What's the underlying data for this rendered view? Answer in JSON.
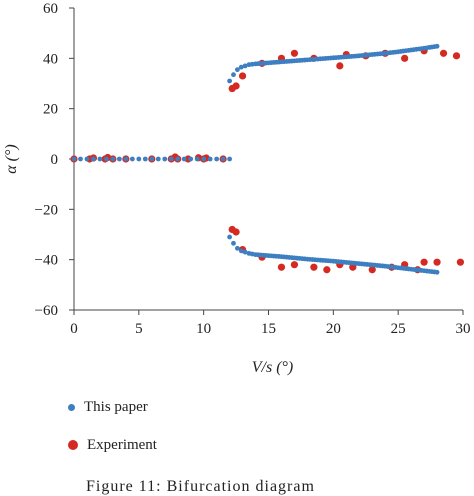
{
  "chart_data": {
    "type": "scatter",
    "xlabel": "V/s (°)",
    "ylabel": "α (°)",
    "xlim": [
      0,
      30
    ],
    "ylim": [
      -60,
      60
    ],
    "xticks": [
      0,
      5,
      10,
      15,
      20,
      25,
      30
    ],
    "yticks": [
      -60,
      -40,
      -20,
      0,
      20,
      40,
      60
    ],
    "grid": false,
    "legend_position": "bottom",
    "series": [
      {
        "name": "This paper",
        "color": "#3d7fc0",
        "marker": "asterisk",
        "stable": {
          "x_start": 0,
          "x_end": 12.0,
          "step": 0.5,
          "y": 0
        },
        "upper_branch": [
          [
            12.0,
            31
          ],
          [
            12.3,
            33.5
          ],
          [
            12.6,
            35.5
          ],
          [
            12.9,
            36.5
          ],
          [
            13.2,
            37
          ],
          [
            13.5,
            37.5
          ],
          [
            14,
            37.8
          ],
          [
            15,
            38.2
          ],
          [
            16,
            38.6
          ],
          [
            17,
            39
          ],
          [
            18,
            39.4
          ],
          [
            19,
            39.8
          ],
          [
            20,
            40.2
          ],
          [
            21,
            40.6
          ],
          [
            22,
            41
          ],
          [
            23,
            41.5
          ],
          [
            24,
            42
          ],
          [
            25,
            42.6
          ],
          [
            26,
            43.3
          ],
          [
            27,
            44
          ],
          [
            28,
            44.8
          ]
        ],
        "lower_branch": [
          [
            12.0,
            -31
          ],
          [
            12.3,
            -33.5
          ],
          [
            12.6,
            -35.5
          ],
          [
            12.9,
            -36.5
          ],
          [
            13.2,
            -37
          ],
          [
            13.5,
            -37.5
          ],
          [
            14,
            -38
          ],
          [
            15,
            -38.4
          ],
          [
            16,
            -38.8
          ],
          [
            17,
            -39.3
          ],
          [
            18,
            -39.8
          ],
          [
            19,
            -40.2
          ],
          [
            20,
            -40.6
          ],
          [
            21,
            -41.1
          ],
          [
            22,
            -41.6
          ],
          [
            23,
            -42.1
          ],
          [
            24,
            -42.6
          ],
          [
            25,
            -43.2
          ],
          [
            26,
            -43.8
          ],
          [
            27,
            -44.4
          ],
          [
            28,
            -45
          ]
        ]
      },
      {
        "name": "Experiment",
        "color": "#d42a22",
        "marker": "circle",
        "points": [
          [
            0,
            0
          ],
          [
            1.2,
            0
          ],
          [
            1.5,
            0.4
          ],
          [
            2.4,
            0
          ],
          [
            2.6,
            0.6
          ],
          [
            3.0,
            0
          ],
          [
            4.0,
            0
          ],
          [
            6.0,
            0
          ],
          [
            7.5,
            0
          ],
          [
            7.8,
            0.8
          ],
          [
            8.0,
            0
          ],
          [
            8.8,
            0
          ],
          [
            9.6,
            0.5
          ],
          [
            10.0,
            0
          ],
          [
            10.2,
            0.4
          ],
          [
            11.5,
            0
          ],
          [
            12.2,
            28
          ],
          [
            12.5,
            29
          ],
          [
            13.0,
            33
          ],
          [
            14.5,
            38
          ],
          [
            16.0,
            40
          ],
          [
            17.0,
            42
          ],
          [
            18.5,
            40
          ],
          [
            20.5,
            37
          ],
          [
            21.0,
            41.5
          ],
          [
            22.5,
            41
          ],
          [
            24.0,
            42
          ],
          [
            25.5,
            40
          ],
          [
            27.0,
            43
          ],
          [
            28.5,
            42
          ],
          [
            29.5,
            41
          ],
          [
            12.2,
            -28
          ],
          [
            12.5,
            -29
          ],
          [
            13.0,
            -36
          ],
          [
            14.5,
            -39
          ],
          [
            16.0,
            -43
          ],
          [
            17.0,
            -42
          ],
          [
            18.5,
            -43
          ],
          [
            19.5,
            -44
          ],
          [
            20.5,
            -42
          ],
          [
            21.5,
            -43
          ],
          [
            23.0,
            -44
          ],
          [
            24.5,
            -43
          ],
          [
            25.5,
            -42
          ],
          [
            26.5,
            -44
          ],
          [
            27.0,
            -41
          ],
          [
            28.0,
            -41
          ],
          [
            29.8,
            -41
          ]
        ]
      }
    ]
  },
  "caption": {
    "text": "Figure 11: Bifurcation diagram"
  }
}
